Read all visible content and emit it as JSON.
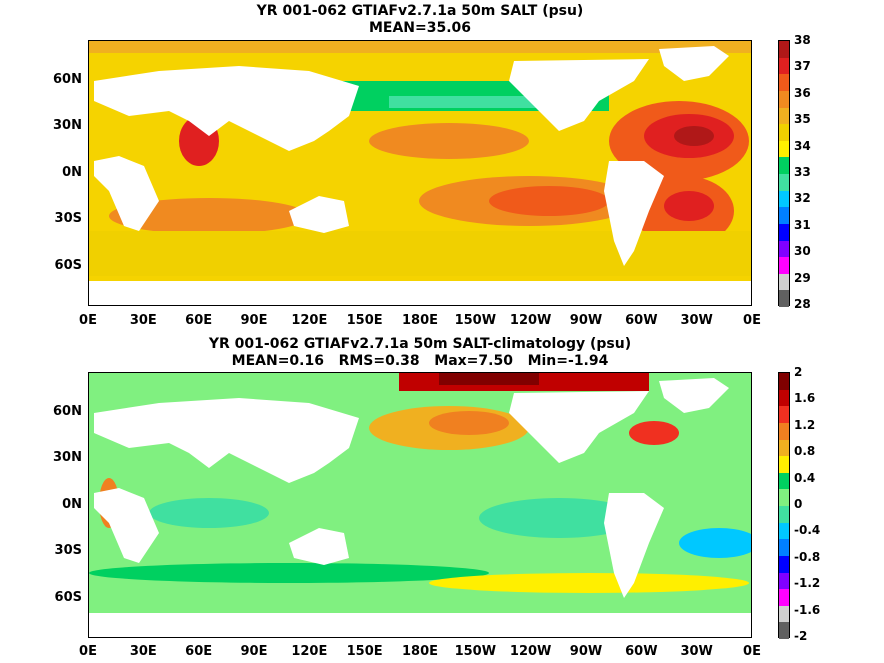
{
  "panels": [
    {
      "title_line1": "YR 001-062 GTIAFv2.7.1a 50m SALT (psu)",
      "title_line2": "MEAN=35.06",
      "colorbar_labels": [
        "38",
        "37",
        "36",
        "35",
        "34",
        "33",
        "32",
        "31",
        "30",
        "29",
        "28"
      ],
      "colorbar_colors": [
        "#b01818",
        "#e02020",
        "#f05a1a",
        "#f08a20",
        "#f0b020",
        "#f0d000",
        "#ffef00",
        "#00d060",
        "#40e0a0",
        "#00c8ff",
        "#0080ff",
        "#0000ff",
        "#8000ff",
        "#ff00ff",
        "#d0d0d0",
        "#606060"
      ],
      "ocean_color": "#f5d300"
    },
    {
      "title_line1": "YR 001-062 GTIAFv2.7.1a 50m SALT-climatology (psu)",
      "title_line2": "MEAN=0.16   RMS=0.38   Max=7.50   Min=-1.94",
      "colorbar_labels": [
        "2",
        "1.6",
        "1.2",
        "0.8",
        "0.4",
        "0",
        "-0.4",
        "-0.8",
        "-1.2",
        "-1.6",
        "-2"
      ],
      "colorbar_colors": [
        "#800000",
        "#c00000",
        "#f03020",
        "#f08020",
        "#f0b020",
        "#ffef00",
        "#00d060",
        "#80f080",
        "#40e0a0",
        "#00c8ff",
        "#0080ff",
        "#0000ff",
        "#8000ff",
        "#ff00ff",
        "#d0d0d0",
        "#606060"
      ],
      "ocean_color": "#80f080"
    }
  ],
  "lat_labels": [
    "60N",
    "30N",
    "0N",
    "30S",
    "60S"
  ],
  "lon_labels": [
    "0E",
    "30E",
    "60E",
    "90E",
    "120E",
    "150E",
    "180E",
    "150W",
    "120W",
    "90W",
    "60W",
    "30W",
    "0E"
  ]
}
